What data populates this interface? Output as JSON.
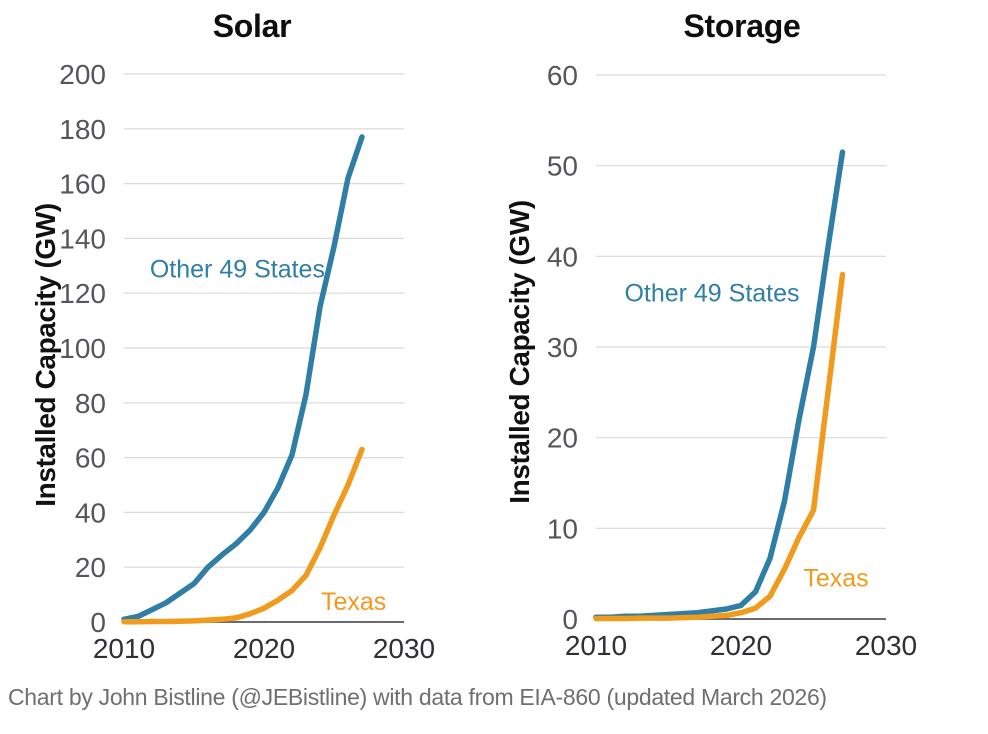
{
  "page": {
    "background": "#FFFFFF",
    "caption": "Chart by John Bistline (@JEBistline) with data from EIA-860 (updated March 2026)"
  },
  "colors": {
    "series_other_states": "#2E7EA6",
    "series_texas": "#F09A1E",
    "gridline": "#D9D9D9",
    "zero_axis": "#55565A",
    "y_tick_label": "#55565A",
    "x_tick_label": "#2F3033",
    "title_text": "#0E0E0E",
    "axis_title_text": "#111111",
    "caption_text": "#6F6F6F"
  },
  "chart_data": [
    {
      "type": "line",
      "title": "Solar",
      "ylabel": "Installed Capacity (GW)",
      "xlabel": "",
      "xlim": [
        2010,
        2030
      ],
      "ylim": [
        0,
        200
      ],
      "xticks": [
        2010,
        2020,
        2030
      ],
      "yticks": [
        0,
        20,
        40,
        60,
        80,
        100,
        120,
        140,
        160,
        180,
        200
      ],
      "grid": "horizontal",
      "legend": "direct-line-labels",
      "x": [
        2010,
        2011,
        2012,
        2013,
        2014,
        2015,
        2016,
        2017,
        2018,
        2019,
        2020,
        2021,
        2022,
        2023,
        2024,
        2025,
        2026,
        2027
      ],
      "series": [
        {
          "name": "Other 49 States",
          "color_key": "series_other_states",
          "values": [
            1,
            2,
            4.5,
            7,
            10.5,
            14,
            20,
            24.5,
            28.5,
            33.5,
            40,
            49,
            61,
            83,
            115,
            137,
            162,
            177
          ]
        },
        {
          "name": "Texas",
          "color_key": "series_texas",
          "values": [
            0.1,
            0.1,
            0.2,
            0.2,
            0.3,
            0.4,
            0.7,
            1,
            1.5,
            3,
            5,
            8,
            11.5,
            17,
            27,
            39,
            50,
            63
          ]
        }
      ],
      "annotations": [
        {
          "text": "Other 49 States",
          "x": 2018.1,
          "y": 129,
          "color_key": "series_other_states"
        },
        {
          "text": "Texas",
          "x": 2026.4,
          "y": 7.7,
          "color_key": "series_texas"
        }
      ]
    },
    {
      "type": "line",
      "title": "Storage",
      "ylabel": "Installed Capacity (GW)",
      "xlabel": "",
      "xlim": [
        2010,
        2030
      ],
      "ylim": [
        0,
        60
      ],
      "xticks": [
        2010,
        2020,
        2030
      ],
      "yticks": [
        0,
        10,
        20,
        30,
        40,
        50,
        60
      ],
      "grid": "horizontal",
      "legend": "direct-line-labels",
      "x": [
        2010,
        2011,
        2012,
        2013,
        2014,
        2015,
        2016,
        2017,
        2018,
        2019,
        2020,
        2021,
        2022,
        2023,
        2024,
        2025,
        2026,
        2027
      ],
      "series": [
        {
          "name": "Other 49 States",
          "color_key": "series_other_states",
          "values": [
            0.2,
            0.2,
            0.3,
            0.3,
            0.4,
            0.5,
            0.6,
            0.7,
            0.9,
            1.1,
            1.5,
            3,
            6.7,
            13,
            22,
            30,
            41,
            51.5
          ]
        },
        {
          "name": "Texas",
          "color_key": "series_texas",
          "values": [
            0.05,
            0.05,
            0.05,
            0.1,
            0.1,
            0.1,
            0.15,
            0.2,
            0.3,
            0.4,
            0.7,
            1.2,
            2.5,
            5.5,
            9,
            12,
            25,
            38
          ]
        }
      ],
      "annotations": [
        {
          "text": "Other 49 States",
          "x": 2018,
          "y": 36,
          "color_key": "series_other_states"
        },
        {
          "text": "Texas",
          "x": 2026.55,
          "y": 4.6,
          "color_key": "series_texas"
        }
      ]
    }
  ]
}
